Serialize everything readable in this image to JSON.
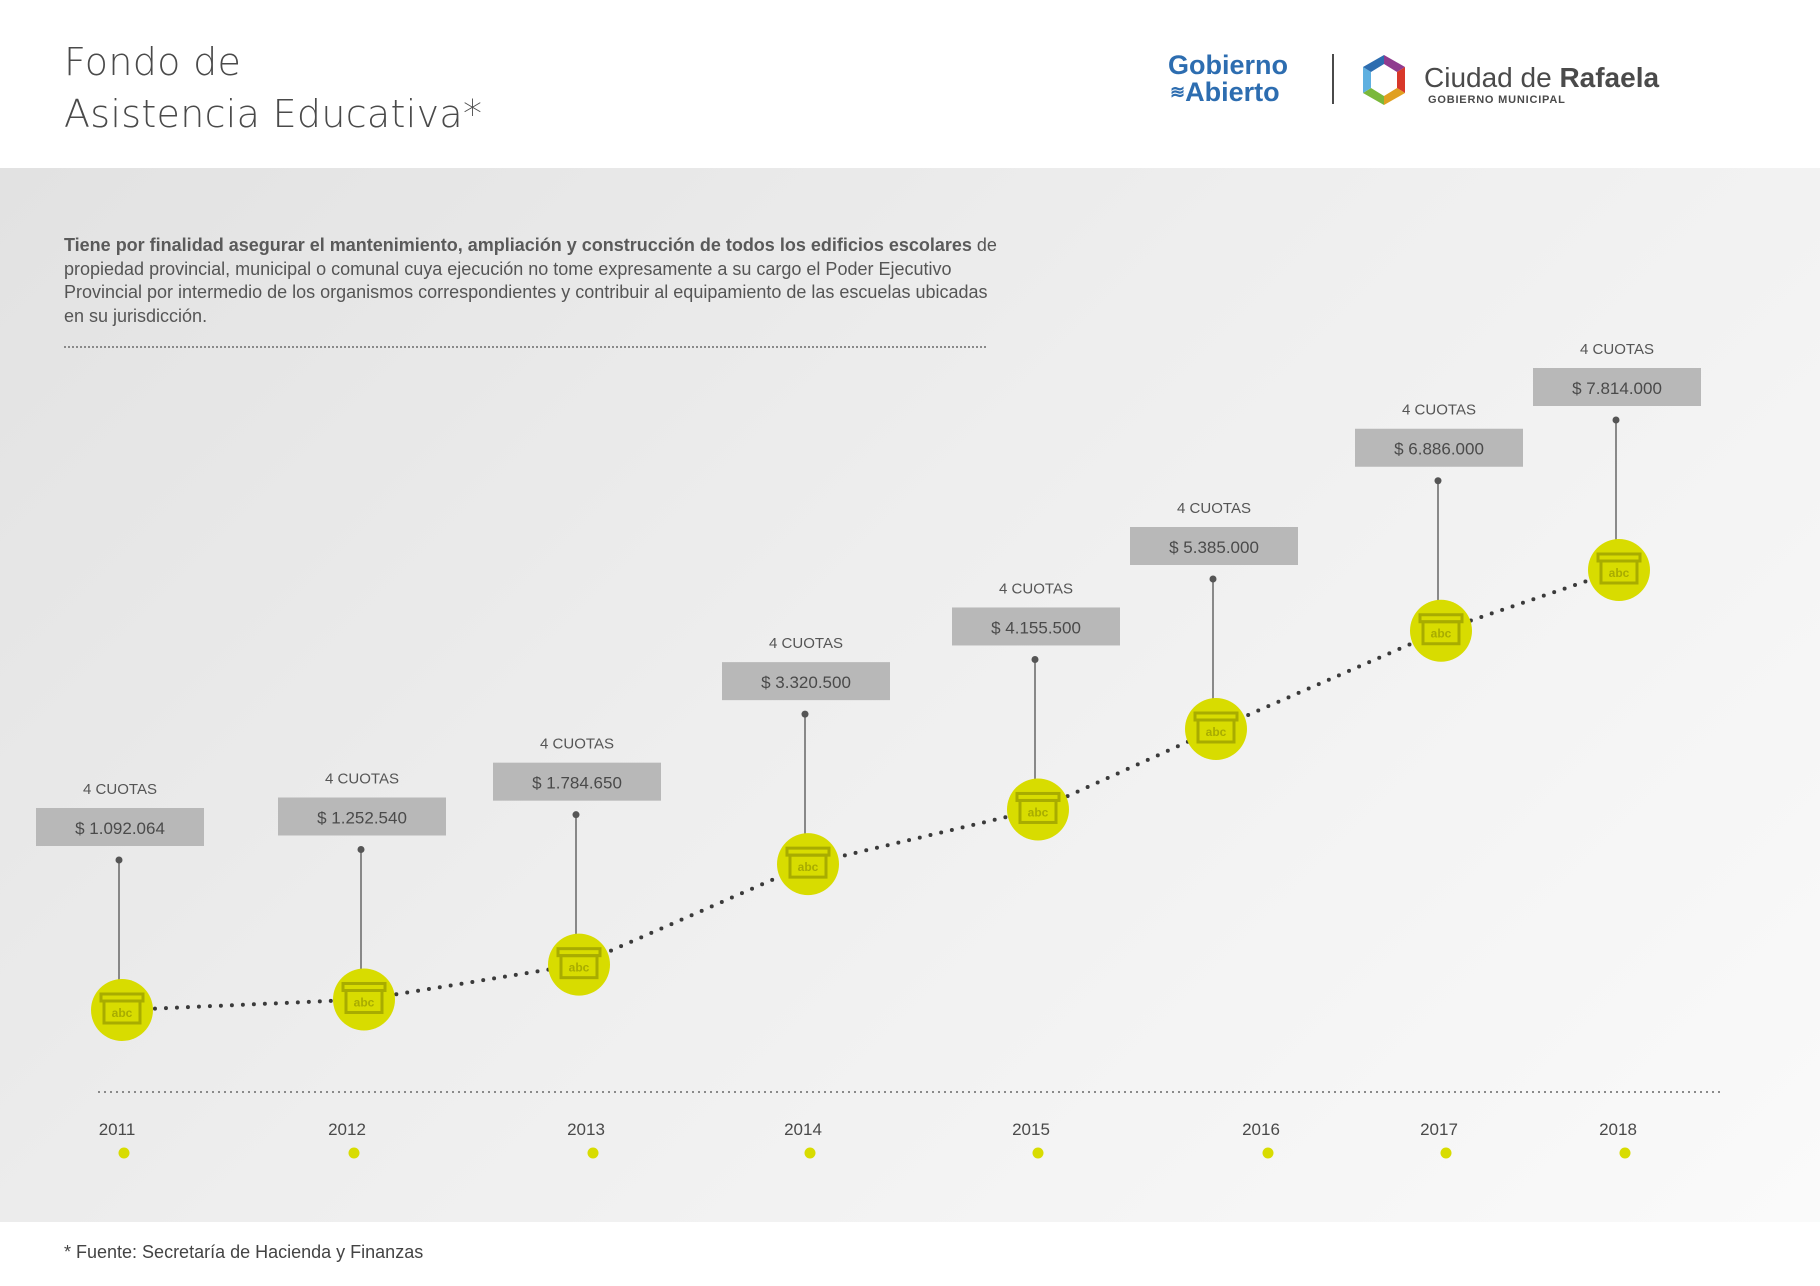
{
  "header": {
    "title_line1": "Fondo de",
    "title_line2": "Asistencia Educativa*"
  },
  "logos": {
    "gobierno_line1": "Gobierno",
    "gobierno_line2": "Abierto",
    "ciudad_prefix": "Ciudad de ",
    "ciudad_bold": "Rafaela",
    "municipal": "GOBIERNO MUNICIPAL",
    "colors": {
      "gobierno": "#2d6db0",
      "hex": [
        "#8f3b8f",
        "#2d6db0",
        "#5fb0e0",
        "#7ab83a",
        "#e0a020",
        "#d8382a"
      ]
    }
  },
  "description": {
    "bold": "Tiene por finalidad asegurar el mantenimiento, ampliación y construcción de todos los edificios escolares",
    "rest": " de propiedad provincial, municipal o comunal cuya ejecución no tome expresamente a su cargo el Poder Ejecutivo Provincial por intermedio de los organismos correspondientes y contribuir al equipamiento de las escuelas ubicadas en su jurisdicción."
  },
  "chart_data": {
    "type": "line",
    "x": [
      "2011",
      "2012",
      "2013",
      "2014",
      "2015",
      "2016",
      "2017",
      "2018"
    ],
    "series": [
      {
        "values": [
          1092064,
          1252540,
          1784650,
          3320500,
          4155500,
          5385000,
          6886000,
          7814000
        ]
      }
    ],
    "value_labels": [
      "$ 1.092.064",
      "$ 1.252.540",
      "$ 1.784.650",
      "$ 3.320.500",
      "$ 4.155.500",
      "$ 5.385.000",
      "$ 6.886.000",
      "$ 7.814.000"
    ],
    "installments_label": "4 CUOTAS",
    "marker_icon": "school-box-icon",
    "marker_text": "abc",
    "colors": {
      "marker": "#d8dc00",
      "marker_icon": "#a8ac00",
      "label_box": "#b8b8b8",
      "line": "#3a3a3a"
    },
    "grid": false,
    "legend": "none"
  },
  "footnote": "* Fuente: Secretaría de Hacienda y Finanzas"
}
